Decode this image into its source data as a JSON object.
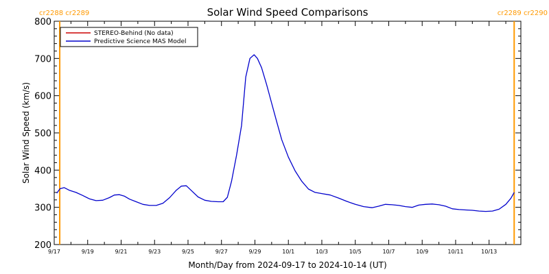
{
  "chart_data": {
    "type": "line",
    "title": "Solar Wind Speed Comparisons",
    "xlabel": "Month/Day from 2024-09-17 to 2024-10-14 (UT)",
    "ylabel": "Solar Wind Speed (km/s)",
    "xlim": [
      0,
      27.9
    ],
    "ylim": [
      200,
      800
    ],
    "y_ticks": [
      200,
      300,
      400,
      500,
      600,
      700,
      800
    ],
    "x_ticks": [
      {
        "label": "9/17",
        "day": 0
      },
      {
        "label": "9/19",
        "day": 2
      },
      {
        "label": "9/21",
        "day": 4
      },
      {
        "label": "9/23",
        "day": 6
      },
      {
        "label": "9/25",
        "day": 8
      },
      {
        "label": "9/27",
        "day": 10
      },
      {
        "label": "9/29",
        "day": 12
      },
      {
        "label": "10/1",
        "day": 14
      },
      {
        "label": "10/3",
        "day": 16
      },
      {
        "label": "10/5",
        "day": 18
      },
      {
        "label": "10/7",
        "day": 20
      },
      {
        "label": "10/9",
        "day": 22
      },
      {
        "label": "10/11",
        "day": 24
      },
      {
        "label": "10/13",
        "day": 26
      }
    ],
    "grid": false,
    "legend_position": "top-left",
    "carrington_markers": [
      {
        "day": 0.33,
        "left_label": "cr2288",
        "right_label": "cr2289",
        "color": "#ff9900"
      },
      {
        "day": 27.5,
        "left_label": "cr2289",
        "right_label": "cr2290",
        "color": "#ff9900"
      }
    ],
    "series": [
      {
        "name": "STEREO-Behind (No data)",
        "color": "#cc0000",
        "points": []
      },
      {
        "name": "Predictive Science MAS Model",
        "color": "#0000cc",
        "points": [
          [
            0.15,
            338
          ],
          [
            0.35,
            350
          ],
          [
            0.6,
            353
          ],
          [
            0.9,
            346
          ],
          [
            1.3,
            340
          ],
          [
            1.7,
            332
          ],
          [
            2.1,
            323
          ],
          [
            2.5,
            318
          ],
          [
            2.9,
            319
          ],
          [
            3.3,
            326
          ],
          [
            3.6,
            333
          ],
          [
            3.9,
            334
          ],
          [
            4.2,
            330
          ],
          [
            4.5,
            322
          ],
          [
            4.9,
            315
          ],
          [
            5.3,
            308
          ],
          [
            5.7,
            305
          ],
          [
            6.1,
            305
          ],
          [
            6.5,
            311
          ],
          [
            6.9,
            326
          ],
          [
            7.3,
            346
          ],
          [
            7.6,
            357
          ],
          [
            7.9,
            358
          ],
          [
            8.2,
            345
          ],
          [
            8.6,
            328
          ],
          [
            9.0,
            319
          ],
          [
            9.4,
            316
          ],
          [
            9.8,
            315
          ],
          [
            10.1,
            315
          ],
          [
            10.35,
            327
          ],
          [
            10.6,
            370
          ],
          [
            10.9,
            440
          ],
          [
            11.2,
            520
          ],
          [
            11.45,
            650
          ],
          [
            11.7,
            700
          ],
          [
            11.95,
            710
          ],
          [
            12.15,
            700
          ],
          [
            12.4,
            675
          ],
          [
            12.7,
            630
          ],
          [
            13.0,
            580
          ],
          [
            13.3,
            530
          ],
          [
            13.6,
            482
          ],
          [
            14.0,
            435
          ],
          [
            14.4,
            398
          ],
          [
            14.8,
            370
          ],
          [
            15.2,
            349
          ],
          [
            15.6,
            340
          ],
          [
            16.0,
            337
          ],
          [
            16.5,
            333
          ],
          [
            17.0,
            325
          ],
          [
            17.5,
            316
          ],
          [
            18.0,
            308
          ],
          [
            18.5,
            302
          ],
          [
            19.0,
            299
          ],
          [
            19.4,
            303
          ],
          [
            19.8,
            308
          ],
          [
            20.2,
            307
          ],
          [
            20.6,
            305
          ],
          [
            21.0,
            302
          ],
          [
            21.4,
            300
          ],
          [
            21.8,
            306
          ],
          [
            22.2,
            308
          ],
          [
            22.6,
            309
          ],
          [
            23.0,
            307
          ],
          [
            23.4,
            303
          ],
          [
            23.8,
            296
          ],
          [
            24.2,
            294
          ],
          [
            24.6,
            293
          ],
          [
            25.0,
            292
          ],
          [
            25.4,
            290
          ],
          [
            25.8,
            289
          ],
          [
            26.2,
            290
          ],
          [
            26.6,
            295
          ],
          [
            27.0,
            308
          ],
          [
            27.3,
            324
          ],
          [
            27.5,
            340
          ]
        ]
      }
    ]
  }
}
